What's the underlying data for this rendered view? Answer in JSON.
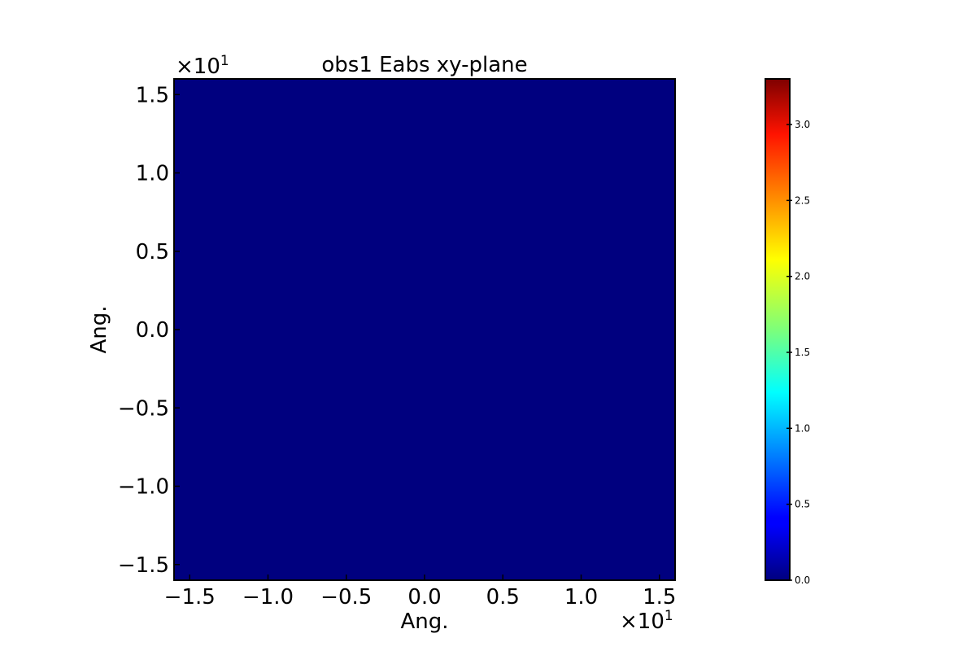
{
  "chart_data": {
    "type": "heatmap",
    "title": "obs1 Eabs xy-plane",
    "xlabel": "Ang.",
    "ylabel": "Ang.",
    "x_multiplier": "×10",
    "x_multiplier_exp": "1",
    "y_multiplier": "×10",
    "y_multiplier_exp": "1",
    "xlim": [
      -16,
      16
    ],
    "ylim": [
      -16,
      16
    ],
    "x_ticks": [
      -15,
      -10,
      -5,
      0,
      5,
      10,
      15
    ],
    "x_tick_labels": [
      "−1.5",
      "−1.0",
      "−0.5",
      "0.0",
      "0.5",
      "1.0",
      "1.5"
    ],
    "y_ticks": [
      15,
      10,
      5,
      0,
      -5,
      -10,
      -15
    ],
    "y_tick_labels": [
      "1.5",
      "1.0",
      "0.5",
      "0.0",
      "−0.5",
      "−1.0",
      "−1.5"
    ],
    "field_value": 0.0,
    "field_color": "#00007f",
    "colorbar": {
      "colormap": "jet",
      "range": [
        0.0,
        3.3
      ],
      "ticks": [
        0.0,
        0.5,
        1.0,
        1.5,
        2.0,
        2.5,
        3.0
      ],
      "tick_labels": [
        "0.0",
        "0.5",
        "1.0",
        "1.5",
        "2.0",
        "2.5",
        "3.0"
      ]
    }
  }
}
